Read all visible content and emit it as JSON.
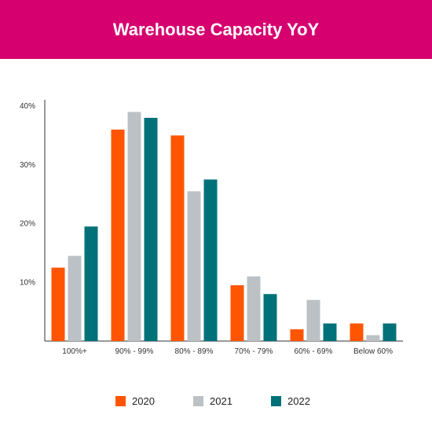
{
  "header": {
    "title": "Warehouse Capacity YoY"
  },
  "colors": {
    "header_bg": "#d6006f",
    "s2020": "#ff5500",
    "s2021": "#bcc1c5",
    "s2022": "#007178"
  },
  "chart_data": {
    "type": "bar",
    "title": "Warehouse Capacity YoY",
    "xlabel": "",
    "ylabel": "",
    "categories": [
      "100%+",
      "90% - 99%",
      "80% - 89%",
      "70% - 79%",
      "60% - 69%",
      "Below 60%"
    ],
    "series": [
      {
        "name": "2020",
        "color": "#ff5500",
        "values": [
          12.5,
          36,
          35,
          9.5,
          2,
          3
        ]
      },
      {
        "name": "2021",
        "color": "#bcc1c5",
        "values": [
          14.5,
          39,
          25.5,
          11,
          7,
          1
        ]
      },
      {
        "name": "2022",
        "color": "#007178",
        "values": [
          19.5,
          38,
          27.5,
          8,
          3,
          3
        ]
      }
    ],
    "ylim": [
      0,
      40
    ],
    "yticks": [
      10,
      20,
      30,
      40
    ],
    "ytick_labels": [
      "10%",
      "20%",
      "30%",
      "40%"
    ],
    "grid": false,
    "legend": "bottom"
  }
}
